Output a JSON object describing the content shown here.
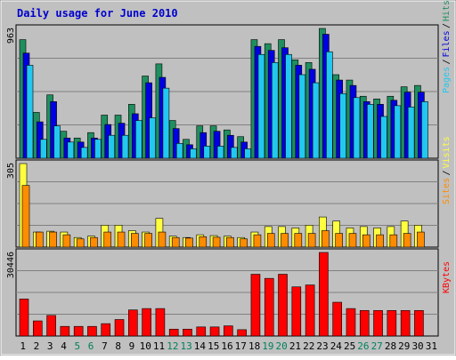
{
  "chart_data": {
    "type": "bar",
    "title": "Daily usage for June 2010",
    "categories": [
      "1",
      "2",
      "3",
      "4",
      "5",
      "6",
      "7",
      "8",
      "9",
      "10",
      "11",
      "12",
      "13",
      "14",
      "15",
      "16",
      "17",
      "18",
      "19",
      "20",
      "21",
      "22",
      "23",
      "24",
      "25",
      "26",
      "27",
      "28",
      "29",
      "30",
      "31"
    ],
    "weekend_days": [
      "5",
      "6",
      "12",
      "13",
      "19",
      "20",
      "26",
      "27"
    ],
    "grid": true,
    "panels": [
      {
        "id": "hits",
        "max_label": "963",
        "ylim": [
          0,
          963
        ],
        "legend": [
          "Pages",
          "Files",
          "Hits"
        ],
        "series": [
          {
            "name": "Hits",
            "color": "#1f8f5f",
            "values": [
              880,
              340,
              470,
              200,
              150,
              190,
              320,
              320,
              400,
              610,
              700,
              280,
              140,
              240,
              240,
              210,
              160,
              880,
              850,
              880,
              730,
              710,
              963,
              620,
              580,
              460,
              440,
              460,
              530,
              540,
              0
            ]
          },
          {
            "name": "Files",
            "color": "#0000e0",
            "values": [
              780,
              270,
              420,
              150,
              120,
              150,
              250,
              260,
              330,
              560,
              600,
              220,
              100,
              190,
              200,
              170,
              120,
              830,
              800,
              820,
              690,
              660,
              920,
              580,
              540,
              420,
              400,
              430,
              490,
              490,
              0
            ]
          },
          {
            "name": "Pages",
            "color": "#22c8f0",
            "values": [
              690,
              140,
              240,
              120,
              80,
              140,
              170,
              170,
              280,
              300,
              520,
              110,
              70,
              90,
              90,
              80,
              70,
              770,
              710,
              770,
              620,
              560,
              790,
              480,
              450,
              400,
              310,
              390,
              380,
              420,
              0
            ]
          }
        ]
      },
      {
        "id": "visits",
        "max_label": "305",
        "ylim": [
          0,
          305
        ],
        "legend": [
          "Sites",
          "Visits"
        ],
        "series": [
          {
            "name": "Visits",
            "color": "#ffff40",
            "values": [
              305,
              55,
              58,
              55,
              35,
              40,
              80,
              80,
              60,
              55,
              105,
              40,
              35,
              45,
              42,
              40,
              35,
              55,
              75,
              75,
              70,
              80,
              110,
              95,
              70,
              75,
              70,
              75,
              95,
              80,
              0
            ]
          },
          {
            "name": "Sites",
            "color": "#ff8c00",
            "values": [
              225,
              55,
              55,
              45,
              30,
              35,
              55,
              55,
              50,
              50,
              55,
              35,
              33,
              38,
              36,
              35,
              30,
              45,
              50,
              50,
              50,
              50,
              60,
              50,
              50,
              45,
              45,
              45,
              50,
              55,
              0
            ]
          }
        ]
      },
      {
        "id": "kbytes",
        "max_label": "30446",
        "ylim": [
          0,
          30446
        ],
        "legend": [
          "KBytes"
        ],
        "series": [
          {
            "name": "KBytes",
            "color": "#ff0000",
            "values": [
              13500,
              5500,
              7500,
              3500,
              3500,
              3500,
              4500,
              6000,
              9500,
              10000,
              10000,
              2500,
              2500,
              3300,
              3300,
              3700,
              2300,
              22500,
              21000,
              22500,
              17900,
              18600,
              30446,
              12300,
              10000,
              9300,
              9300,
              9300,
              9300,
              9300,
              0
            ]
          }
        ]
      }
    ]
  }
}
